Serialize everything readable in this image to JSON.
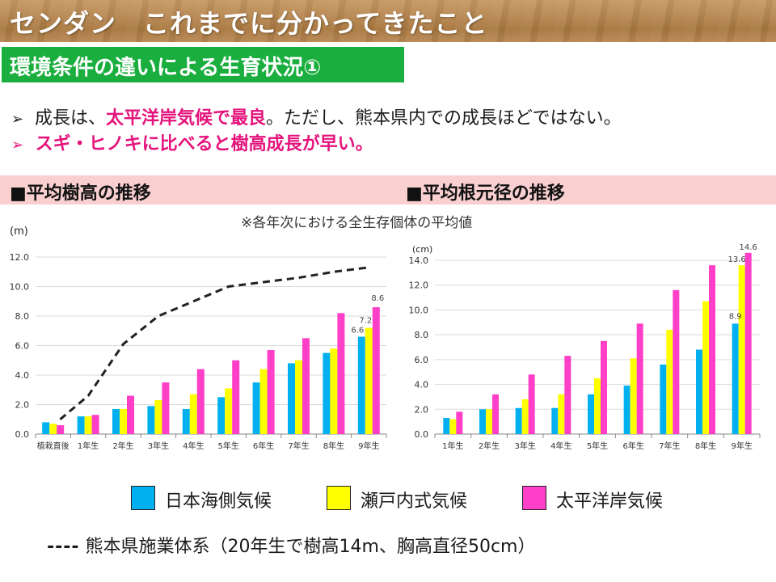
{
  "slide": {
    "title": "センダン　これまでに分かってきたこと",
    "section": "環境条件の違いによる生育状況①",
    "bullet1": {
      "pre": "成長は、",
      "highlight": "太平洋岸気候で最良",
      "post": "。ただし、熊本県内での成長ほどではない。"
    },
    "bullet2": "スギ・ヒノキに比べると樹高成長が早い。",
    "arrow": "➢",
    "note": "※各年次における全生存個体の平均値",
    "colors": {
      "green": "#1aae3e",
      "pink_text": "#e5137c",
      "band": "#f9cfd0"
    }
  },
  "legend": {
    "items": [
      {
        "label": "日本海側気候",
        "color": "#00b0f0"
      },
      {
        "label": "瀬戸内式気候",
        "color": "#ffff00"
      },
      {
        "label": "太平洋岸気候",
        "color": "#ff3fc8"
      }
    ],
    "dash_symbol": "----",
    "dash_label": "熊本県施業体系（20年生で樹高14m、胸高直径50cm）"
  },
  "chart_data": [
    {
      "type": "bar",
      "title": "■平均樹高の推移",
      "unit": "(m)",
      "categories": [
        "植栽直後",
        "1年生",
        "2年生",
        "3年生",
        "4年生",
        "5年生",
        "6年生",
        "7年生",
        "8年生",
        "9年生"
      ],
      "ylim": [
        0,
        12
      ],
      "yticks": [
        "0.0",
        "2.0",
        "4.0",
        "6.0",
        "8.0",
        "10.0",
        "12.0"
      ],
      "series": [
        {
          "name": "日本海側気候",
          "color": "#00b0f0",
          "values": [
            0.8,
            1.2,
            1.7,
            1.9,
            1.7,
            2.5,
            3.5,
            4.8,
            5.5,
            6.6
          ]
        },
        {
          "name": "瀬戸内式気候",
          "color": "#ffff00",
          "values": [
            0.7,
            1.2,
            1.7,
            2.3,
            2.7,
            3.1,
            4.4,
            5.0,
            5.8,
            7.2
          ]
        },
        {
          "name": "太平洋岸気候",
          "color": "#ff3fc8",
          "values": [
            0.6,
            1.3,
            2.6,
            3.5,
            4.4,
            5.0,
            5.7,
            6.5,
            8.2,
            8.6
          ]
        }
      ],
      "reference_line": {
        "label": "熊本県施業体系",
        "x_positions": [
          0.2,
          1.0,
          2.0,
          3.0,
          4.0,
          5.0,
          6.0,
          7.0,
          8.0,
          9.0
        ],
        "values": [
          1.0,
          2.6,
          6.1,
          8.0,
          9.0,
          10.0,
          10.3,
          10.6,
          11.0,
          11.3
        ]
      },
      "data_labels": [
        {
          "series": 0,
          "index": 9,
          "text": "6.6"
        },
        {
          "series": 1,
          "index": 9,
          "text": "7.2"
        },
        {
          "series": 2,
          "index": 9,
          "text": "8.6"
        }
      ]
    },
    {
      "type": "bar",
      "title": "■平均根元径の推移",
      "unit": "(cm)",
      "categories": [
        "1年生",
        "2年生",
        "3年生",
        "4年生",
        "5年生",
        "6年生",
        "7年生",
        "8年生",
        "9年生"
      ],
      "ylim": [
        0,
        14
      ],
      "yticks": [
        "0.0",
        "2.0",
        "4.0",
        "6.0",
        "8.0",
        "10.0",
        "12.0",
        "14.0"
      ],
      "series": [
        {
          "name": "日本海側気候",
          "color": "#00b0f0",
          "values": [
            1.3,
            2.0,
            2.1,
            2.1,
            3.2,
            3.9,
            5.6,
            6.8,
            8.9
          ]
        },
        {
          "name": "瀬戸内式気候",
          "color": "#ffff00",
          "values": [
            1.2,
            2.0,
            2.8,
            3.2,
            4.5,
            6.1,
            8.4,
            10.7,
            13.6
          ]
        },
        {
          "name": "太平洋岸気候",
          "color": "#ff3fc8",
          "values": [
            1.8,
            3.2,
            4.8,
            6.3,
            7.5,
            8.9,
            11.6,
            13.6,
            14.6
          ]
        }
      ],
      "data_labels": [
        {
          "series": 0,
          "index": 8,
          "text": "8.9"
        },
        {
          "series": 1,
          "index": 8,
          "text": "13.6"
        },
        {
          "series": 2,
          "index": 8,
          "text": "14.6"
        }
      ]
    }
  ]
}
